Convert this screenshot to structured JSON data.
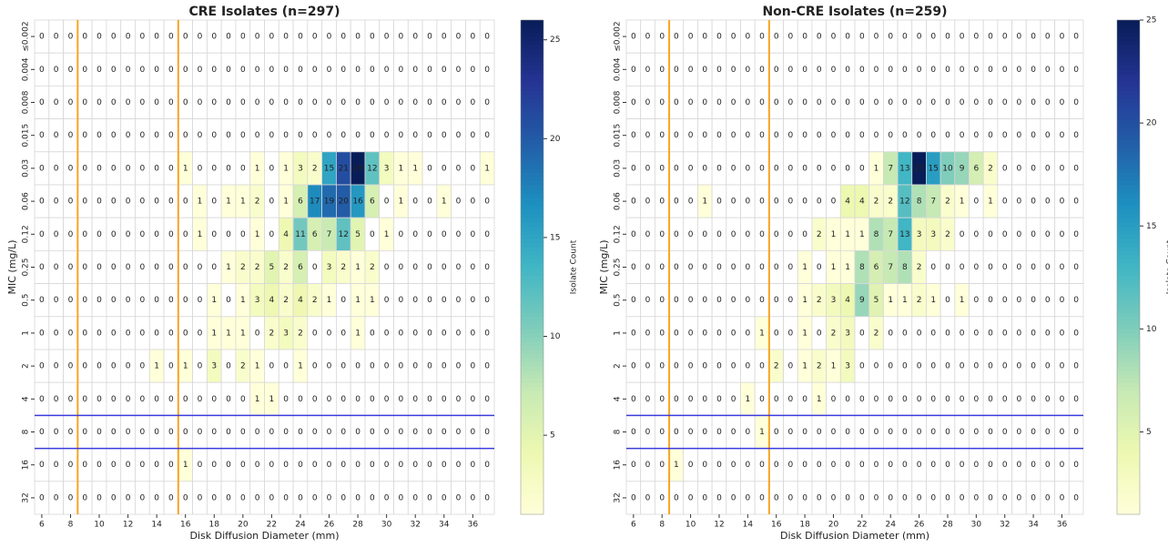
{
  "chart_data": [
    {
      "type": "heatmap",
      "title": "CRE Isolates (n=297)",
      "x_label": "Disk Diffusion Diameter (mm)",
      "y_label": "MIC (mg/L)",
      "x": [
        6,
        7,
        8,
        9,
        10,
        11,
        12,
        13,
        14,
        15,
        16,
        17,
        18,
        19,
        20,
        21,
        22,
        23,
        24,
        25,
        26,
        27,
        28,
        29,
        30,
        31,
        32,
        33,
        34,
        35,
        36,
        37
      ],
      "xlim": [
        5.5,
        37.5
      ],
      "xticks": [
        6,
        8,
        10,
        12,
        14,
        16,
        18,
        20,
        22,
        24,
        26,
        28,
        30,
        32,
        34,
        36
      ],
      "categories": [
        "≤0.002",
        "0.004",
        "0.008",
        "0.015",
        "0.03",
        "0.06",
        "0.12",
        "0.25",
        "0.5",
        "1",
        "2",
        "4",
        "8",
        "16",
        "32"
      ],
      "z": [
        [
          0,
          0,
          0,
          0,
          0,
          0,
          0,
          0,
          0,
          0,
          0,
          0,
          0,
          0,
          0,
          0,
          0,
          0,
          0,
          0,
          0,
          0,
          0,
          0,
          0,
          0,
          0,
          0,
          0,
          0,
          0,
          0
        ],
        [
          0,
          0,
          0,
          0,
          0,
          0,
          0,
          0,
          0,
          0,
          0,
          0,
          0,
          0,
          0,
          0,
          0,
          0,
          0,
          0,
          0,
          0,
          0,
          0,
          0,
          0,
          0,
          0,
          0,
          0,
          0,
          0
        ],
        [
          0,
          0,
          0,
          0,
          0,
          0,
          0,
          0,
          0,
          0,
          0,
          0,
          0,
          0,
          0,
          0,
          0,
          0,
          0,
          0,
          0,
          0,
          0,
          0,
          0,
          0,
          0,
          0,
          0,
          0,
          0,
          0
        ],
        [
          0,
          0,
          0,
          0,
          0,
          0,
          0,
          0,
          0,
          0,
          0,
          0,
          0,
          0,
          0,
          0,
          0,
          0,
          0,
          0,
          0,
          0,
          0,
          0,
          0,
          0,
          0,
          0,
          0,
          0,
          0,
          0
        ],
        [
          0,
          0,
          0,
          0,
          0,
          0,
          0,
          0,
          0,
          0,
          1,
          0,
          0,
          0,
          0,
          1,
          0,
          1,
          3,
          2,
          15,
          21,
          26,
          12,
          3,
          1,
          1,
          0,
          0,
          0,
          0,
          1
        ],
        [
          0,
          0,
          0,
          0,
          0,
          0,
          0,
          0,
          0,
          0,
          0,
          1,
          0,
          1,
          1,
          2,
          0,
          1,
          6,
          17,
          19,
          20,
          16,
          6,
          0,
          1,
          0,
          0,
          1,
          0,
          0,
          0
        ],
        [
          0,
          0,
          0,
          0,
          0,
          0,
          0,
          0,
          0,
          0,
          0,
          1,
          0,
          0,
          0,
          1,
          0,
          4,
          11,
          6,
          7,
          12,
          5,
          0,
          1,
          0,
          0,
          0,
          0,
          0,
          0,
          0
        ],
        [
          0,
          0,
          0,
          0,
          0,
          0,
          0,
          0,
          0,
          0,
          0,
          0,
          0,
          1,
          2,
          2,
          5,
          2,
          6,
          0,
          3,
          2,
          1,
          2,
          0,
          0,
          0,
          0,
          0,
          0,
          0,
          0
        ],
        [
          0,
          0,
          0,
          0,
          0,
          0,
          0,
          0,
          0,
          0,
          0,
          0,
          1,
          0,
          1,
          3,
          4,
          2,
          4,
          2,
          1,
          0,
          1,
          1,
          0,
          0,
          0,
          0,
          0,
          0,
          0,
          0
        ],
        [
          0,
          0,
          0,
          0,
          0,
          0,
          0,
          0,
          0,
          0,
          0,
          0,
          1,
          1,
          1,
          0,
          2,
          3,
          2,
          0,
          0,
          0,
          1,
          0,
          0,
          0,
          0,
          0,
          0,
          0,
          0,
          0
        ],
        [
          0,
          0,
          0,
          0,
          0,
          0,
          0,
          0,
          1,
          0,
          1,
          0,
          3,
          0,
          2,
          1,
          0,
          0,
          1,
          0,
          0,
          0,
          0,
          0,
          0,
          0,
          0,
          0,
          0,
          0,
          0,
          0
        ],
        [
          0,
          0,
          0,
          0,
          0,
          0,
          0,
          0,
          0,
          0,
          0,
          0,
          0,
          0,
          0,
          1,
          1,
          0,
          0,
          0,
          0,
          0,
          0,
          0,
          0,
          0,
          0,
          0,
          0,
          0,
          0,
          0
        ],
        [
          0,
          0,
          0,
          0,
          0,
          0,
          0,
          0,
          0,
          0,
          0,
          0,
          0,
          0,
          0,
          0,
          0,
          0,
          0,
          0,
          0,
          0,
          0,
          0,
          0,
          0,
          0,
          0,
          0,
          0,
          0,
          0
        ],
        [
          0,
          0,
          0,
          0,
          0,
          0,
          0,
          0,
          0,
          0,
          1,
          0,
          0,
          0,
          0,
          0,
          0,
          0,
          0,
          0,
          0,
          0,
          0,
          0,
          0,
          0,
          0,
          0,
          0,
          0,
          0,
          0
        ],
        [
          0,
          0,
          0,
          0,
          0,
          0,
          0,
          0,
          0,
          0,
          0,
          0,
          0,
          0,
          0,
          0,
          0,
          0,
          0,
          0,
          0,
          0,
          0,
          0,
          0,
          0,
          0,
          0,
          0,
          0,
          0,
          0
        ]
      ],
      "colormap": "YlGnBu",
      "clim": [
        1,
        26
      ],
      "cbar_ticks": [
        5,
        10,
        15,
        20,
        25
      ],
      "cbar_label": "Isolate Count",
      "vlines": [
        8.5,
        15.5
      ],
      "vline_color": "#f5a623",
      "hlines_below": [
        "4",
        "8"
      ],
      "hline_color": "#3b3bdc"
    },
    {
      "type": "heatmap",
      "title": "Non-CRE Isolates (n=259)",
      "x_label": "Disk Diffusion Diameter (mm)",
      "y_label": "MIC (mg/L)",
      "x": [
        6,
        7,
        8,
        9,
        10,
        11,
        12,
        13,
        14,
        15,
        16,
        17,
        18,
        19,
        20,
        21,
        22,
        23,
        24,
        25,
        26,
        27,
        28,
        29,
        30,
        31,
        32,
        33,
        34,
        35,
        36,
        37
      ],
      "xlim": [
        5.5,
        37.5
      ],
      "xticks": [
        6,
        8,
        10,
        12,
        14,
        16,
        18,
        20,
        22,
        24,
        26,
        28,
        30,
        32,
        34,
        36
      ],
      "categories": [
        "≤0.002",
        "0.004",
        "0.008",
        "0.015",
        "0.03",
        "0.06",
        "0.12",
        "0.25",
        "0.5",
        "1",
        "2",
        "4",
        "8",
        "16",
        "32"
      ],
      "z": [
        [
          0,
          0,
          0,
          0,
          0,
          0,
          0,
          0,
          0,
          0,
          0,
          0,
          0,
          0,
          0,
          0,
          0,
          0,
          0,
          0,
          0,
          0,
          0,
          0,
          0,
          0,
          0,
          0,
          0,
          0,
          0,
          0
        ],
        [
          0,
          0,
          0,
          0,
          0,
          0,
          0,
          0,
          0,
          0,
          0,
          0,
          0,
          0,
          0,
          0,
          0,
          0,
          0,
          0,
          0,
          0,
          0,
          0,
          0,
          0,
          0,
          0,
          0,
          0,
          0,
          0
        ],
        [
          0,
          0,
          0,
          0,
          0,
          0,
          0,
          0,
          0,
          0,
          0,
          0,
          0,
          0,
          0,
          0,
          0,
          0,
          0,
          0,
          0,
          0,
          0,
          0,
          0,
          0,
          0,
          0,
          0,
          0,
          0,
          0
        ],
        [
          0,
          0,
          0,
          0,
          0,
          0,
          0,
          0,
          0,
          0,
          0,
          0,
          0,
          0,
          0,
          0,
          0,
          0,
          0,
          0,
          0,
          0,
          0,
          0,
          0,
          0,
          0,
          0,
          0,
          0,
          0,
          0
        ],
        [
          0,
          0,
          0,
          0,
          0,
          0,
          0,
          0,
          0,
          0,
          0,
          0,
          0,
          0,
          0,
          0,
          0,
          1,
          7,
          13,
          25,
          15,
          10,
          9,
          6,
          2,
          0,
          0,
          0,
          0,
          0,
          0
        ],
        [
          0,
          0,
          0,
          0,
          0,
          1,
          0,
          0,
          0,
          0,
          0,
          0,
          0,
          0,
          0,
          4,
          4,
          2,
          2,
          12,
          8,
          7,
          2,
          1,
          0,
          1,
          0,
          0,
          0,
          0,
          0,
          0
        ],
        [
          0,
          0,
          0,
          0,
          0,
          0,
          0,
          0,
          0,
          0,
          0,
          0,
          0,
          2,
          1,
          1,
          1,
          8,
          7,
          13,
          3,
          3,
          2,
          0,
          0,
          0,
          0,
          0,
          0,
          0,
          0,
          0
        ],
        [
          0,
          0,
          0,
          0,
          0,
          0,
          0,
          0,
          0,
          0,
          0,
          0,
          1,
          0,
          1,
          1,
          8,
          6,
          7,
          8,
          2,
          0,
          0,
          0,
          0,
          0,
          0,
          0,
          0,
          0,
          0,
          0
        ],
        [
          0,
          0,
          0,
          0,
          0,
          0,
          0,
          0,
          0,
          0,
          0,
          0,
          1,
          2,
          3,
          4,
          9,
          5,
          1,
          1,
          2,
          1,
          0,
          1,
          0,
          0,
          0,
          0,
          0,
          0,
          0,
          0
        ],
        [
          0,
          0,
          0,
          0,
          0,
          0,
          0,
          0,
          0,
          1,
          0,
          0,
          1,
          0,
          2,
          3,
          0,
          2,
          0,
          0,
          0,
          0,
          0,
          0,
          0,
          0,
          0,
          0,
          0,
          0,
          0,
          0
        ],
        [
          0,
          0,
          0,
          0,
          0,
          0,
          0,
          0,
          0,
          0,
          2,
          0,
          1,
          2,
          1,
          3,
          0,
          0,
          0,
          0,
          0,
          0,
          0,
          0,
          0,
          0,
          0,
          0,
          0,
          0,
          0,
          0
        ],
        [
          0,
          0,
          0,
          0,
          0,
          0,
          0,
          0,
          1,
          0,
          0,
          0,
          0,
          1,
          0,
          0,
          0,
          0,
          0,
          0,
          0,
          0,
          0,
          0,
          0,
          0,
          0,
          0,
          0,
          0,
          0,
          0
        ],
        [
          0,
          0,
          0,
          0,
          0,
          0,
          0,
          0,
          0,
          1,
          0,
          0,
          0,
          0,
          0,
          0,
          0,
          0,
          0,
          0,
          0,
          0,
          0,
          0,
          0,
          0,
          0,
          0,
          0,
          0,
          0,
          0
        ],
        [
          0,
          0,
          0,
          1,
          0,
          0,
          0,
          0,
          0,
          0,
          0,
          0,
          0,
          0,
          0,
          0,
          0,
          0,
          0,
          0,
          0,
          0,
          0,
          0,
          0,
          0,
          0,
          0,
          0,
          0,
          0,
          0
        ],
        [
          0,
          0,
          0,
          0,
          0,
          0,
          0,
          0,
          0,
          0,
          0,
          0,
          0,
          0,
          0,
          0,
          0,
          0,
          0,
          0,
          0,
          0,
          0,
          0,
          0,
          0,
          0,
          0,
          0,
          0,
          0,
          0
        ]
      ],
      "colormap": "YlGnBu",
      "clim": [
        1,
        25
      ],
      "cbar_ticks": [
        5,
        10,
        15,
        20,
        25
      ],
      "cbar_label": "Isolate Count",
      "vlines": [
        8.5,
        15.5
      ],
      "vline_color": "#f5a623",
      "hlines_below": [
        "4",
        "8"
      ],
      "hline_color": "#3b3bdc"
    }
  ]
}
